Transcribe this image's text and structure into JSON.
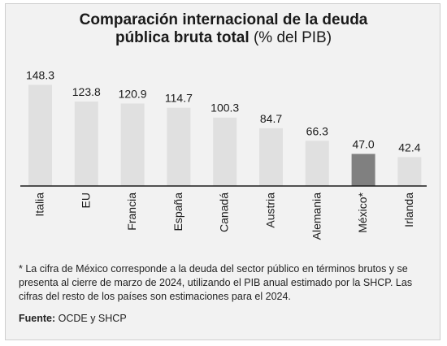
{
  "title": {
    "line1": "Comparación internacional de la deuda",
    "line2_bold": "pública bruta total",
    "line2_normal": "(% del PIB)"
  },
  "chart_data": {
    "type": "bar",
    "categories": [
      "Italia",
      "EU",
      "Francia",
      "España",
      "Canadá",
      "Austria",
      "Alemania",
      "México*",
      "Irlanda"
    ],
    "values": [
      148.3,
      123.8,
      120.9,
      114.7,
      100.3,
      84.7,
      66.3,
      47.0,
      42.4
    ],
    "value_labels": [
      "148.3",
      "123.8",
      "120.9",
      "114.7",
      "100.3",
      "84.7",
      "66.3",
      "47.0",
      "42.4"
    ],
    "highlight_category": "México*",
    "colors": {
      "bar": "#e0e0e0",
      "highlight": "#808080"
    },
    "ylim": [
      0,
      150
    ],
    "grid": false
  },
  "footnote": "* La cifra de México corresponde a la deuda del sector público en términos brutos y se presenta al cierre de marzo de 2024, utilizando el PIB anual estimado por la SHCP. Las cifras del resto de los países son estimaciones para el 2024.",
  "source": {
    "label": "Fuente:",
    "text": "OCDE y SHCP"
  }
}
